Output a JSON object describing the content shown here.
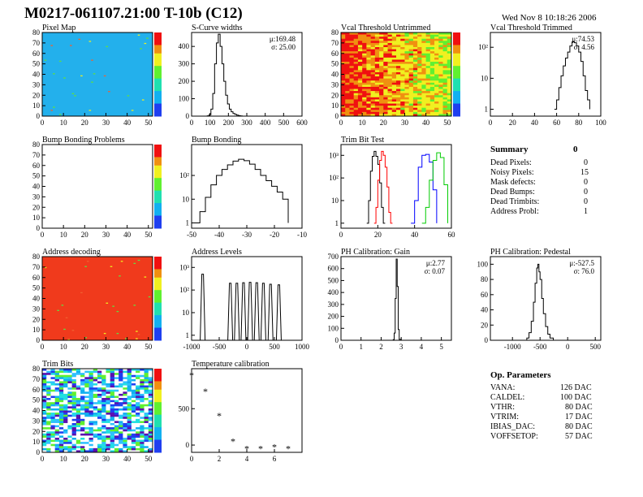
{
  "header": {
    "title": "M0217-061107.21:00 T-10b (C12)",
    "timestamp": "Wed Nov  8 10:18:26 2006"
  },
  "chart_data": [
    {
      "id": "pixel-map",
      "type": "heatmap",
      "title": "Pixel Map",
      "xlim": [
        0,
        52
      ],
      "ylim": [
        0,
        80
      ],
      "x_ticks": [
        "0",
        "10",
        "20",
        "30",
        "40",
        "50"
      ],
      "y_ticks": [
        "0",
        "10",
        "20",
        "30",
        "40",
        "50",
        "60",
        "70",
        "80"
      ],
      "base_color": "#23b0ec",
      "note_values": "uniform hit count map with a few outlier pixels"
    },
    {
      "id": "s-curve-widths",
      "type": "line",
      "title": "S-Curve widths",
      "xlim": [
        0,
        600
      ],
      "ylim": [
        0,
        480
      ],
      "x_ticks": [
        "0",
        "100",
        "200",
        "300",
        "400",
        "500",
        "600"
      ],
      "y_ticks": [
        "0",
        "100",
        "200",
        "300",
        "400"
      ],
      "stats": [
        "μ:169.48",
        "σ: 25.00"
      ],
      "x": [
        75,
        85,
        95,
        105,
        115,
        125,
        135,
        145,
        155,
        165,
        175,
        185,
        195,
        205,
        215,
        225,
        235,
        245,
        255,
        265,
        275
      ],
      "y": [
        0,
        2,
        8,
        40,
        130,
        300,
        420,
        470,
        400,
        300,
        200,
        120,
        70,
        40,
        25,
        15,
        10,
        6,
        3,
        1,
        0
      ]
    },
    {
      "id": "vcal-untrimmed",
      "type": "heatmap",
      "title": "Vcal Threshold Untrimmed",
      "xlim": [
        0,
        52
      ],
      "ylim": [
        0,
        80
      ],
      "x_ticks": [
        "0",
        "10",
        "20",
        "30",
        "40",
        "50"
      ],
      "y_ticks": [
        "0",
        "10",
        "20",
        "30",
        "40",
        "50",
        "60",
        "70",
        "80"
      ],
      "palette_values": "red/orange at low columns, yellow-green at high columns"
    },
    {
      "id": "vcal-trimmed",
      "type": "line",
      "title": "Vcal Threshold Trimmed",
      "xlim": [
        0,
        100
      ],
      "log_y": true,
      "ylim": [
        0.6,
        300
      ],
      "x_ticks": [
        "0",
        "20",
        "40",
        "60",
        "80",
        "100"
      ],
      "y_ticks": [
        "1",
        "10",
        "10²"
      ],
      "stats": [
        "μ:74.53",
        "σ: 4.56"
      ],
      "x": [
        58,
        60,
        62,
        64,
        66,
        68,
        70,
        72,
        74,
        76,
        78,
        80,
        82,
        84,
        86,
        88,
        90
      ],
      "y": [
        1,
        2,
        5,
        12,
        25,
        45,
        70,
        110,
        150,
        140,
        110,
        70,
        35,
        12,
        4,
        2,
        1
      ]
    },
    {
      "id": "bump-bonding-problems",
      "type": "heatmap",
      "title": "Bump Bonding Problems",
      "xlim": [
        0,
        52
      ],
      "ylim": [
        0,
        80
      ],
      "x_ticks": [
        "0",
        "10",
        "20",
        "30",
        "40",
        "50"
      ],
      "y_ticks": [
        "0",
        "10",
        "20",
        "30",
        "40",
        "50",
        "60",
        "70",
        "80"
      ],
      "empty": true
    },
    {
      "id": "bump-bonding",
      "type": "line",
      "title": "Bump Bonding",
      "xlim": [
        -50,
        -10
      ],
      "log_y": true,
      "ylim": [
        0.6,
        2000
      ],
      "x_ticks": [
        "-50",
        "-40",
        "-30",
        "-20",
        "-10"
      ],
      "y_ticks": [
        "1",
        "10",
        "10²"
      ],
      "x": [
        -49,
        -47,
        -45,
        -43,
        -41,
        -39,
        -37,
        -35,
        -33,
        -31,
        -29,
        -27,
        -25,
        -23,
        -21,
        -19,
        -17,
        -15
      ],
      "y": [
        1,
        3,
        12,
        40,
        100,
        180,
        280,
        400,
        480,
        420,
        300,
        180,
        100,
        60,
        35,
        20,
        10,
        1
      ]
    },
    {
      "id": "trim-bit-test",
      "type": "line",
      "title": "Trim Bit Test",
      "xlim": [
        0,
        60
      ],
      "log_y": true,
      "ylim": [
        0.6,
        3000
      ],
      "x_ticks": [
        "0",
        "20",
        "40",
        "60"
      ],
      "y_ticks": [
        "1",
        "10",
        "10²",
        "10³"
      ],
      "series": [
        {
          "color": "#000000",
          "x": [
            14,
            15,
            16,
            17,
            18,
            19,
            20,
            21,
            22,
            23,
            24
          ],
          "y": [
            1,
            10,
            200,
            900,
            1500,
            900,
            400,
            60,
            5,
            1,
            1
          ]
        },
        {
          "color": "#ff0000",
          "x": [
            18,
            19,
            20,
            21,
            22,
            23,
            24,
            25,
            26,
            27,
            28
          ],
          "y": [
            1,
            5,
            80,
            600,
            1500,
            1000,
            300,
            40,
            3,
            1,
            1
          ]
        },
        {
          "color": "#0000ff",
          "x": [
            38,
            40,
            42,
            44,
            46,
            48,
            50,
            52
          ],
          "y": [
            1,
            10,
            300,
            1000,
            1100,
            500,
            30,
            1
          ]
        },
        {
          "color": "#00cc00",
          "x": [
            44,
            46,
            48,
            50,
            52,
            54,
            56,
            58
          ],
          "y": [
            1,
            5,
            80,
            600,
            1300,
            800,
            50,
            1
          ]
        }
      ]
    },
    {
      "id": "address-decoding",
      "type": "heatmap",
      "title": "Address decoding",
      "xlim": [
        0,
        52
      ],
      "ylim": [
        0,
        80
      ],
      "x_ticks": [
        "0",
        "10",
        "20",
        "30",
        "40",
        "50"
      ],
      "y_ticks": [
        "0",
        "10",
        "20",
        "30",
        "40",
        "50",
        "60",
        "70",
        "80"
      ],
      "base_color": "#f03a1c"
    },
    {
      "id": "address-levels",
      "type": "line",
      "title": "Address Levels",
      "xlim": [
        -1000,
        1000
      ],
      "log_y": true,
      "ylim": [
        0.6,
        3000
      ],
      "x_ticks": [
        "-1000",
        "-500",
        "0",
        "500",
        "1000"
      ],
      "y_ticks": [
        "1",
        "10",
        "10²",
        "10³"
      ],
      "peaks": [
        -800,
        -300,
        -180,
        -60,
        60,
        180,
        300,
        430,
        580
      ],
      "peak_heights": [
        500,
        200,
        200,
        210,
        220,
        210,
        200,
        180,
        170
      ]
    },
    {
      "id": "ph-gain",
      "type": "line",
      "title": "PH Calibration: Gain",
      "xlim": [
        0,
        5.5
      ],
      "ylim": [
        0,
        700
      ],
      "x_ticks": [
        "0",
        "1",
        "2",
        "3",
        "4",
        "5"
      ],
      "y_ticks": [
        "0",
        "100",
        "200",
        "300",
        "400",
        "500",
        "600",
        "700"
      ],
      "stats": [
        "μ:2.77",
        "σ: 0.07"
      ],
      "x": [
        2.5,
        2.6,
        2.65,
        2.7,
        2.75,
        2.8,
        2.85,
        2.9,
        3.0
      ],
      "y": [
        0,
        5,
        60,
        350,
        680,
        450,
        90,
        8,
        0
      ]
    },
    {
      "id": "ph-pedestal",
      "type": "line",
      "title": "PH Calibration: Pedestal",
      "xlim": [
        -1400,
        600
      ],
      "ylim": [
        0,
        110
      ],
      "x_ticks": [
        "-1000",
        "-500",
        "0",
        "500"
      ],
      "y_ticks": [
        "0",
        "20",
        "40",
        "60",
        "80",
        "100"
      ],
      "stats": [
        "μ:-527.5",
        "σ: 76.0"
      ],
      "x": [
        -800,
        -740,
        -700,
        -660,
        -620,
        -590,
        -560,
        -540,
        -520,
        -500,
        -470,
        -440,
        -400,
        -360,
        -320,
        -260
      ],
      "y": [
        0,
        3,
        10,
        25,
        50,
        75,
        95,
        100,
        90,
        80,
        55,
        35,
        18,
        8,
        3,
        0
      ]
    },
    {
      "id": "trim-bits",
      "type": "heatmap",
      "title": "Trim Bits",
      "xlim": [
        0,
        52
      ],
      "ylim": [
        0,
        80
      ],
      "x_ticks": [
        "0",
        "10",
        "20",
        "30",
        "40",
        "50"
      ],
      "y_ticks": [
        "0",
        "10",
        "20",
        "30",
        "40",
        "50",
        "60",
        "70",
        "80"
      ],
      "palette_values": "noisy blue/cyan/white pixel pattern"
    },
    {
      "id": "temperature-calibration",
      "type": "scatter",
      "title": "Temperature calibration",
      "xlim": [
        0,
        8
      ],
      "ylim": [
        -100,
        1050
      ],
      "x_ticks": [
        "0",
        "2",
        "4",
        "6"
      ],
      "y_ticks": [
        "0",
        "500"
      ],
      "x": [
        0,
        1,
        2,
        3,
        4,
        5,
        6,
        7
      ],
      "y": [
        960,
        740,
        400,
        50,
        -50,
        -50,
        -30,
        -50
      ]
    }
  ],
  "summary": {
    "title": "Summary",
    "total": "0",
    "rows": [
      {
        "label": "Dead Pixels:",
        "value": "0"
      },
      {
        "label": "Noisy Pixels:",
        "value": "15"
      },
      {
        "label": "Mask defects:",
        "value": "0"
      },
      {
        "label": "Dead Bumps:",
        "value": "0"
      },
      {
        "label": "Dead Trimbits:",
        "value": "0"
      },
      {
        "label": "Address Probl:",
        "value": "1"
      }
    ]
  },
  "op_parameters": {
    "title": "Op. Parameters",
    "rows": [
      {
        "label": "VANA:",
        "value": "126 DAC"
      },
      {
        "label": "CALDEL:",
        "value": "100 DAC"
      },
      {
        "label": "VTHR:",
        "value": "80 DAC"
      },
      {
        "label": "VTRIM:",
        "value": "17 DAC"
      },
      {
        "label": "IBIAS_DAC:",
        "value": "80 DAC"
      },
      {
        "label": "VOFFSETOP:",
        "value": "57 DAC"
      }
    ]
  }
}
